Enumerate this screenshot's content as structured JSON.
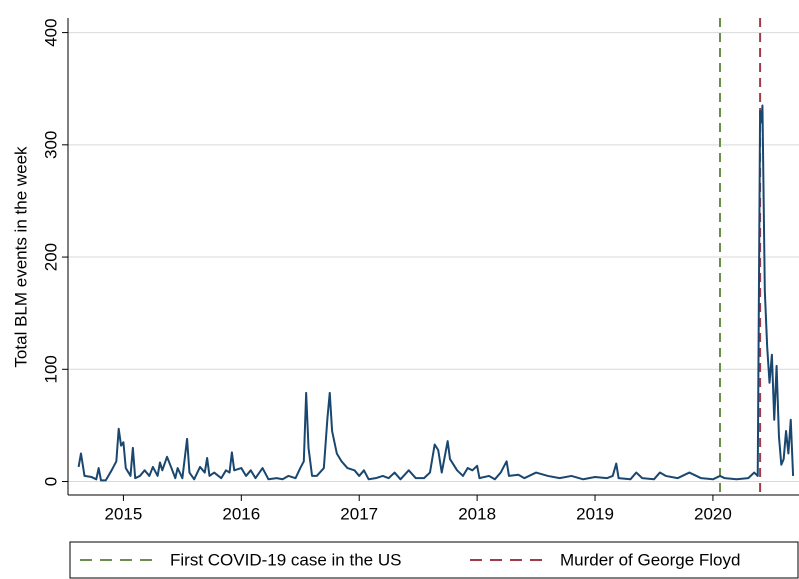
{
  "chart_data": {
    "type": "line",
    "ylabel": "Total BLM events in the week",
    "color": "#1a476f",
    "x": [
      2014.62,
      2014.64,
      2014.67,
      2014.73,
      2014.77,
      2014.79,
      2014.81,
      2014.85,
      2014.9,
      2014.94,
      2014.96,
      2014.98,
      2015.0,
      2015.02,
      2015.06,
      2015.08,
      2015.1,
      2015.14,
      2015.18,
      2015.22,
      2015.25,
      2015.29,
      2015.31,
      2015.33,
      2015.37,
      2015.4,
      2015.44,
      2015.46,
      2015.5,
      2015.54,
      2015.56,
      2015.6,
      2015.65,
      2015.69,
      2015.71,
      2015.73,
      2015.77,
      2015.83,
      2015.87,
      2015.9,
      2015.92,
      2015.94,
      2016.0,
      2016.04,
      2016.08,
      2016.12,
      2016.18,
      2016.23,
      2016.3,
      2016.35,
      2016.4,
      2016.46,
      2016.5,
      2016.53,
      2016.55,
      2016.57,
      2016.6,
      2016.64,
      2016.7,
      2016.73,
      2016.75,
      2016.77,
      2016.81,
      2016.85,
      2016.9,
      2016.96,
      2017.0,
      2017.04,
      2017.08,
      2017.14,
      2017.2,
      2017.25,
      2017.3,
      2017.35,
      2017.42,
      2017.48,
      2017.55,
      2017.6,
      2017.64,
      2017.67,
      2017.7,
      2017.75,
      2017.77,
      2017.83,
      2017.88,
      2017.92,
      2017.96,
      2018.0,
      2018.02,
      2018.1,
      2018.15,
      2018.2,
      2018.25,
      2018.27,
      2018.35,
      2018.4,
      2018.5,
      2018.6,
      2018.7,
      2018.8,
      2018.9,
      2019.0,
      2019.1,
      2019.15,
      2019.18,
      2019.2,
      2019.3,
      2019.35,
      2019.4,
      2019.5,
      2019.55,
      2019.6,
      2019.7,
      2019.8,
      2019.9,
      2020.0,
      2020.06,
      2020.1,
      2020.2,
      2020.3,
      2020.35,
      2020.38,
      2020.4,
      2020.41,
      2020.42,
      2020.44,
      2020.46,
      2020.48,
      2020.5,
      2020.52,
      2020.54,
      2020.56,
      2020.58,
      2020.6,
      2020.62,
      2020.64,
      2020.66,
      2020.68
    ],
    "values": [
      13,
      25,
      5,
      4,
      2,
      12,
      1,
      1,
      10,
      18,
      47,
      32,
      35,
      12,
      5,
      30,
      3,
      5,
      10,
      5,
      13,
      5,
      17,
      10,
      22,
      14,
      3,
      12,
      3,
      38,
      8,
      2,
      13,
      8,
      21,
      5,
      8,
      3,
      10,
      8,
      26,
      10,
      12,
      5,
      10,
      3,
      12,
      2,
      3,
      2,
      5,
      3,
      12,
      18,
      79,
      30,
      5,
      5,
      12,
      56,
      79,
      45,
      25,
      18,
      12,
      10,
      5,
      10,
      2,
      3,
      5,
      3,
      8,
      2,
      10,
      3,
      3,
      8,
      33,
      28,
      8,
      36,
      20,
      10,
      5,
      12,
      10,
      14,
      3,
      5,
      2,
      8,
      18,
      5,
      6,
      3,
      8,
      5,
      3,
      5,
      2,
      4,
      3,
      5,
      16,
      3,
      2,
      8,
      3,
      2,
      8,
      5,
      3,
      8,
      3,
      2,
      5,
      3,
      2,
      3,
      8,
      5,
      330,
      320,
      335,
      170,
      120,
      88,
      113,
      55,
      103,
      40,
      15,
      20,
      45,
      25,
      55,
      5
    ],
    "xlim": [
      2014.53,
      2020.73
    ],
    "xticks": [
      2015,
      2016,
      2017,
      2018,
      2019,
      2020
    ],
    "ylim": [
      -12,
      413
    ],
    "yticks": [
      0,
      100,
      200,
      300,
      400
    ],
    "grid": true,
    "vlines": [
      {
        "x": 2020.06,
        "label": "First COVID-19 case in the US",
        "color": "#6b8e4e"
      },
      {
        "x": 2020.4,
        "label": "Murder of George Floyd",
        "color": "#a33a4a"
      }
    ]
  }
}
